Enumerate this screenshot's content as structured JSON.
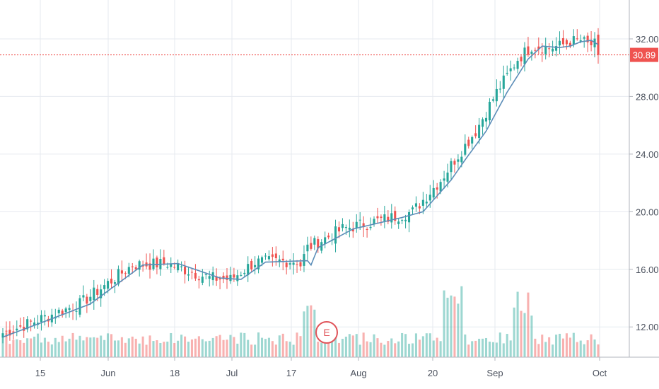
{
  "chart_data": {
    "type": "candlestick",
    "title": "",
    "x_labels": [
      "15",
      "Jun",
      "18",
      "Jul",
      "17",
      "Aug",
      "20",
      "Sep",
      "Oct"
    ],
    "y_ticks": [
      12.0,
      16.0,
      20.0,
      24.0,
      28.0,
      32.0
    ],
    "y_tick_labels": [
      "12.00",
      "16.00",
      "20.00",
      "24.00",
      "28.00",
      "32.00"
    ],
    "ylim": [
      9.9,
      34.7
    ],
    "last_price": 30.89,
    "last_price_label": "30.89",
    "earnings_marker": {
      "label": "E",
      "date": "2018-07-25"
    },
    "colors": {
      "up": "#26a69a",
      "down": "#ef5350",
      "ma": "#5b8db8",
      "volume_up": "#26a69a",
      "volume_down": "#ef5350",
      "grid": "#e6eaef",
      "last_price_line": "#ef5350"
    },
    "moving_average": {
      "start": 11.3,
      "knots": [
        [
          0,
          11.3
        ],
        [
          10,
          12.2
        ],
        [
          25,
          13.6
        ],
        [
          40,
          16.3
        ],
        [
          50,
          16.4
        ],
        [
          62,
          15.4
        ],
        [
          68,
          15.3
        ],
        [
          75,
          16.5
        ],
        [
          87,
          16.6
        ],
        [
          88,
          16.3
        ],
        [
          90,
          17.5
        ],
        [
          100,
          18.8
        ],
        [
          114,
          19.6
        ],
        [
          120,
          20.0
        ],
        [
          128,
          22.2
        ],
        [
          132,
          23.6
        ],
        [
          138,
          25.6
        ],
        [
          144,
          28.3
        ],
        [
          150,
          30.6
        ],
        [
          154,
          31.5
        ],
        [
          159,
          31.4
        ],
        [
          162,
          31.5
        ],
        [
          165,
          31.8
        ],
        [
          168,
          31.9
        ],
        [
          170,
          31.6
        ]
      ]
    },
    "candles_daily_generated": true,
    "volume_scale_note": ""
  }
}
